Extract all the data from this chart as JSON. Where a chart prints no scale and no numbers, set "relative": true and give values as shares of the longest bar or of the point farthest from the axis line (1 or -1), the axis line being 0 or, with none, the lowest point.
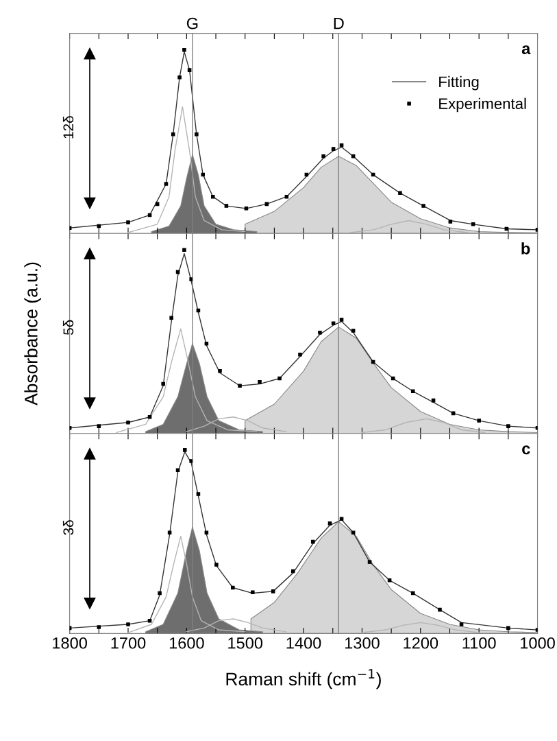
{
  "chart_data": [
    {
      "type": "line",
      "relative": true,
      "xlim": [
        1800,
        1000
      ],
      "tick_labels": false,
      "legend": "top right",
      "xticks": [
        1800,
        {
          "value": 1750,
          "label": null
        },
        1700,
        {
          "value": 1650,
          "label": null
        },
        1600,
        {
          "value": 1550,
          "label": null
        },
        1500,
        {
          "value": 1450,
          "label": null
        },
        1400,
        {
          "value": 1350,
          "label": null
        },
        1300,
        {
          "value": 1250,
          "label": null
        },
        1200,
        {
          "value": 1150,
          "label": null
        },
        1100,
        {
          "value": 1050,
          "label": null
        },
        1000
      ],
      "ref_lines": [
        {
          "axis": "x",
          "value": 1590,
          "label": "G",
          "color": "#808080"
        },
        {
          "axis": "x",
          "value": 1340,
          "label": "D",
          "color": "#808080"
        }
      ],
      "annotations": [
        "a",
        "12δ"
      ],
      "series": [
        {
          "type": "area",
          "color": "#d6d6d6",
          "x": [
            1500,
            1450,
            1400,
            1370,
            1340,
            1310,
            1280,
            1250,
            1200,
            1150,
            1100,
            1050,
            1000
          ],
          "values": [
            0.05,
            0.12,
            0.25,
            0.36,
            0.42,
            0.37,
            0.27,
            0.17,
            0.08,
            0.03,
            0.01,
            0.005,
            0.003
          ]
        },
        {
          "type": "area",
          "color": "#6e6e6e",
          "x": [
            1660,
            1630,
            1610,
            1600,
            1590,
            1580,
            1570,
            1550,
            1520,
            1480
          ],
          "values": [
            0.01,
            0.04,
            0.15,
            0.3,
            0.43,
            0.32,
            0.15,
            0.05,
            0.02,
            0.01
          ]
        },
        {
          "color": "#b4b4b4",
          "x": [
            1700,
            1650,
            1630,
            1620,
            1607,
            1595,
            1585,
            1570,
            1540,
            1500
          ],
          "values": [
            0.005,
            0.05,
            0.2,
            0.45,
            0.69,
            0.45,
            0.2,
            0.07,
            0.02,
            0.01
          ]
        },
        {
          "color": "#b4b4b4",
          "x": [
            1320,
            1280,
            1250,
            1220,
            1190,
            1160,
            1120
          ],
          "values": [
            0.005,
            0.02,
            0.05,
            0.07,
            0.05,
            0.02,
            0.005
          ]
        },
        {
          "name": "Fitting",
          "color": "#333333",
          "x": [
            1800,
            1700,
            1663,
            1635,
            1623,
            1612,
            1604,
            1595,
            1583,
            1572,
            1555,
            1532,
            1498,
            1463,
            1429,
            1395,
            1366,
            1349,
            1335,
            1315,
            1281,
            1235,
            1195,
            1149,
            1110,
            1053,
            1000
          ],
          "values": [
            0.03,
            0.06,
            0.1,
            0.27,
            0.54,
            0.85,
            0.99,
            0.89,
            0.54,
            0.32,
            0.2,
            0.15,
            0.136,
            0.16,
            0.2,
            0.31,
            0.41,
            0.45,
            0.47,
            0.42,
            0.32,
            0.22,
            0.15,
            0.07,
            0.05,
            0.025,
            0.02
          ]
        },
        {
          "type": "scatter",
          "marker": "square",
          "name": "Experimental",
          "color": "#000000",
          "x": [
            1800,
            1750,
            1700,
            1663,
            1650,
            1635,
            1623,
            1612,
            1604,
            1595,
            1583,
            1572,
            1555,
            1532,
            1498,
            1463,
            1429,
            1395,
            1366,
            1349,
            1335,
            1315,
            1281,
            1235,
            1195,
            1149,
            1110,
            1053,
            1000
          ],
          "values": [
            0.03,
            0.04,
            0.06,
            0.1,
            0.16,
            0.27,
            0.54,
            0.85,
            1.0,
            0.89,
            0.54,
            0.32,
            0.2,
            0.15,
            0.136,
            0.16,
            0.2,
            0.32,
            0.42,
            0.46,
            0.48,
            0.42,
            0.32,
            0.22,
            0.15,
            0.064,
            0.05,
            0.025,
            0.02
          ]
        }
      ]
    },
    {
      "type": "line",
      "relative": true,
      "xlim": [
        1800,
        1000
      ],
      "tick_labels": false,
      "ylabel": "Absorbance (a.u.)",
      "xticks": [
        1800,
        {
          "value": 1750,
          "label": null
        },
        1700,
        {
          "value": 1650,
          "label": null
        },
        1600,
        {
          "value": 1550,
          "label": null
        },
        1500,
        {
          "value": 1450,
          "label": null
        },
        1400,
        {
          "value": 1350,
          "label": null
        },
        1300,
        {
          "value": 1250,
          "label": null
        },
        1200,
        {
          "value": 1150,
          "label": null
        },
        1100,
        {
          "value": 1050,
          "label": null
        },
        1000
      ],
      "ref_lines": [
        {
          "axis": "x",
          "value": 1590,
          "label": null,
          "color": "#808080"
        },
        {
          "axis": "x",
          "value": 1340,
          "label": null,
          "color": "#808080"
        }
      ],
      "annotations": [
        "b",
        "5δ"
      ],
      "series": [
        {
          "type": "area",
          "color": "#d6d6d6",
          "x": [
            1500,
            1450,
            1400,
            1370,
            1340,
            1310,
            1280,
            1250,
            1200,
            1150,
            1100,
            1050,
            1000
          ],
          "values": [
            0.07,
            0.16,
            0.34,
            0.5,
            0.58,
            0.52,
            0.38,
            0.25,
            0.12,
            0.05,
            0.02,
            0.01,
            0.005
          ]
        },
        {
          "type": "area",
          "color": "#6e6e6e",
          "x": [
            1670,
            1640,
            1615,
            1600,
            1590,
            1578,
            1565,
            1545,
            1510,
            1470
          ],
          "values": [
            0.01,
            0.05,
            0.2,
            0.38,
            0.49,
            0.38,
            0.2,
            0.07,
            0.02,
            0.01
          ]
        },
        {
          "color": "#b4b4b4",
          "x": [
            1720,
            1670,
            1640,
            1625,
            1610,
            1598,
            1585,
            1565,
            1530,
            1480
          ],
          "values": [
            0.005,
            0.05,
            0.2,
            0.4,
            0.57,
            0.4,
            0.2,
            0.07,
            0.02,
            0.01
          ]
        },
        {
          "color": "#b4b4b4",
          "x": [
            1600,
            1570,
            1545,
            1520,
            1495,
            1470,
            1430
          ],
          "values": [
            0.01,
            0.04,
            0.08,
            0.09,
            0.07,
            0.03,
            0.01
          ]
        },
        {
          "color": "#b4b4b4",
          "x": [
            1300,
            1260,
            1225,
            1190,
            1160,
            1130,
            1090
          ],
          "values": [
            0.005,
            0.02,
            0.06,
            0.08,
            0.06,
            0.02,
            0.005
          ]
        },
        {
          "color": "#333333",
          "x": [
            1800,
            1700,
            1663,
            1640,
            1626,
            1615,
            1604,
            1592,
            1580,
            1566,
            1543,
            1509,
            1475,
            1441,
            1406,
            1372,
            1349,
            1335,
            1315,
            1281,
            1247,
            1213,
            1178,
            1144,
            1100,
            1050,
            1000
          ],
          "values": [
            0.03,
            0.06,
            0.09,
            0.26,
            0.61,
            0.86,
            0.98,
            0.83,
            0.66,
            0.48,
            0.33,
            0.26,
            0.27,
            0.3,
            0.42,
            0.54,
            0.59,
            0.61,
            0.55,
            0.39,
            0.3,
            0.23,
            0.17,
            0.11,
            0.07,
            0.04,
            0.03
          ]
        },
        {
          "type": "scatter",
          "marker": "square",
          "color": "#000000",
          "x": [
            1800,
            1750,
            1700,
            1663,
            1640,
            1626,
            1615,
            1604,
            1592,
            1580,
            1566,
            1543,
            1509,
            1475,
            1441,
            1406,
            1372,
            1349,
            1335,
            1315,
            1281,
            1247,
            1213,
            1178,
            1144,
            1100,
            1050,
            1000
          ],
          "values": [
            0.03,
            0.04,
            0.06,
            0.09,
            0.27,
            0.63,
            0.88,
            1.0,
            0.84,
            0.67,
            0.49,
            0.34,
            0.26,
            0.28,
            0.3,
            0.43,
            0.55,
            0.6,
            0.62,
            0.56,
            0.39,
            0.3,
            0.23,
            0.18,
            0.11,
            0.07,
            0.04,
            0.03
          ]
        }
      ]
    },
    {
      "type": "line",
      "relative": true,
      "xlim": [
        1800,
        1000
      ],
      "tick_labels": "x",
      "xlabel": "Raman shift (cm$^{−1}$)",
      "xticks": [
        1800,
        {
          "value": 1750,
          "label": null
        },
        1700,
        {
          "value": 1650,
          "label": null
        },
        1600,
        {
          "value": 1550,
          "label": null
        },
        1500,
        {
          "value": 1450,
          "label": null
        },
        1400,
        {
          "value": 1350,
          "label": null
        },
        1300,
        {
          "value": 1250,
          "label": null
        },
        1200,
        {
          "value": 1150,
          "label": null
        },
        1100,
        {
          "value": 1050,
          "label": null
        },
        1000
      ],
      "ref_lines": [
        {
          "axis": "x",
          "value": 1590,
          "label": null,
          "color": "#808080"
        },
        {
          "axis": "x",
          "value": 1340,
          "label": null,
          "color": "#808080"
        }
      ],
      "annotations": [
        "c",
        "3δ"
      ],
      "series": [
        {
          "type": "area",
          "color": "#d6d6d6",
          "x": [
            1490,
            1450,
            1410,
            1370,
            1340,
            1310,
            1280,
            1250,
            1200,
            1150,
            1100,
            1050,
            1000
          ],
          "values": [
            0.08,
            0.17,
            0.33,
            0.52,
            0.61,
            0.53,
            0.37,
            0.24,
            0.11,
            0.05,
            0.02,
            0.01,
            0.005
          ]
        },
        {
          "type": "area",
          "color": "#6e6e6e",
          "x": [
            1670,
            1640,
            1615,
            1600,
            1590,
            1578,
            1565,
            1545,
            1510,
            1470
          ],
          "values": [
            0.01,
            0.05,
            0.22,
            0.45,
            0.58,
            0.45,
            0.22,
            0.08,
            0.02,
            0.01
          ]
        },
        {
          "color": "#b4b4b4",
          "x": [
            1700,
            1660,
            1635,
            1622,
            1610,
            1600,
            1590,
            1575,
            1545,
            1500
          ],
          "values": [
            0.005,
            0.05,
            0.2,
            0.38,
            0.53,
            0.38,
            0.2,
            0.07,
            0.02,
            0.01
          ]
        },
        {
          "color": "#b4b4b4",
          "x": [
            1600,
            1570,
            1545,
            1520,
            1495,
            1470,
            1430
          ],
          "values": [
            0.01,
            0.03,
            0.07,
            0.08,
            0.06,
            0.03,
            0.01
          ]
        },
        {
          "color": "#b4b4b4",
          "x": [
            1300,
            1260,
            1230,
            1200,
            1170,
            1140,
            1100
          ],
          "values": [
            0.005,
            0.02,
            0.045,
            0.06,
            0.045,
            0.02,
            0.005
          ]
        },
        {
          "color": "#333333",
          "x": [
            1800,
            1700,
            1663,
            1646,
            1629,
            1615,
            1603,
            1592,
            1580,
            1566,
            1549,
            1521,
            1487,
            1452,
            1418,
            1384,
            1355,
            1335,
            1315,
            1287,
            1253,
            1213,
            1167,
            1130,
            1050,
            1000
          ],
          "values": [
            0.03,
            0.05,
            0.07,
            0.21,
            0.54,
            0.88,
            0.99,
            0.93,
            0.75,
            0.54,
            0.37,
            0.25,
            0.22,
            0.23,
            0.33,
            0.49,
            0.59,
            0.62,
            0.55,
            0.39,
            0.29,
            0.22,
            0.13,
            0.06,
            0.03,
            0.02
          ]
        },
        {
          "type": "scatter",
          "marker": "square",
          "color": "#000000",
          "x": [
            1800,
            1750,
            1700,
            1663,
            1646,
            1629,
            1615,
            1603,
            1592,
            1580,
            1566,
            1549,
            1521,
            1487,
            1452,
            1418,
            1384,
            1355,
            1335,
            1315,
            1287,
            1253,
            1213,
            1167,
            1130,
            1050,
            1000
          ],
          "values": [
            0.03,
            0.035,
            0.05,
            0.07,
            0.22,
            0.55,
            0.89,
            1.0,
            0.94,
            0.76,
            0.55,
            0.375,
            0.25,
            0.225,
            0.23,
            0.34,
            0.5,
            0.6,
            0.625,
            0.55,
            0.39,
            0.29,
            0.22,
            0.13,
            0.05,
            0.03,
            0.02
          ]
        }
      ]
    }
  ]
}
